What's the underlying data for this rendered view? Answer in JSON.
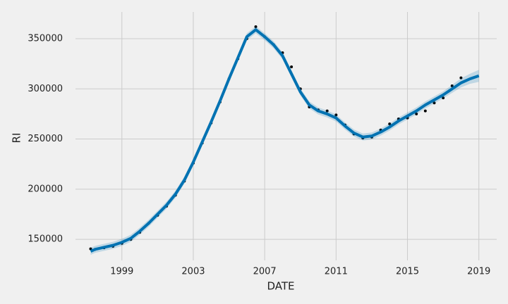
{
  "chart_data": {
    "type": "line",
    "xlabel": "DATE",
    "ylabel": "RI",
    "xlim": [
      1996.4,
      2020.0
    ],
    "xticks": [
      1999,
      2003,
      2007,
      2011,
      2015,
      2019
    ],
    "ylim": [
      129000,
      376700
    ],
    "yticks": [
      150000,
      200000,
      250000,
      300000,
      350000
    ],
    "grid": true,
    "x": [
      1997.25,
      1997.5,
      1998.0,
      1998.5,
      1999.0,
      1999.5,
      2000.0,
      2000.5,
      2001.0,
      2001.5,
      2002.0,
      2002.5,
      2003.0,
      2003.5,
      2004.0,
      2004.5,
      2005.0,
      2005.5,
      2006.0,
      2006.5,
      2007.0,
      2007.5,
      2008.0,
      2008.5,
      2009.0,
      2009.5,
      2010.0,
      2010.5,
      2011.0,
      2011.5,
      2012.0,
      2012.5,
      2013.0,
      2013.5,
      2014.0,
      2014.5,
      2015.0,
      2015.5,
      2016.0,
      2016.5,
      2017.0,
      2017.5,
      2018.0,
      2018.5,
      2019.0
    ],
    "series": [
      {
        "style": "points",
        "color": "#000000",
        "values": [
          140500,
          140000,
          141500,
          143000,
          146000,
          150000,
          157000,
          166000,
          174000,
          183000,
          194000,
          208000,
          226000,
          246000,
          266000,
          287000,
          310000,
          330000,
          350000,
          362000,
          352000,
          344000,
          336000,
          322000,
          300000,
          282000,
          279000,
          278000,
          274000,
          264000,
          255000,
          251000,
          252000,
          259000,
          265000,
          270000,
          271000,
          275000,
          278000,
          286000,
          291000,
          303000,
          311000,
          null,
          null
        ]
      },
      {
        "style": "line",
        "color": "#0072B2",
        "values": [
          138000,
          140000,
          142000,
          144000,
          147000,
          151000,
          158000,
          166000,
          175000,
          184000,
          195000,
          209000,
          227000,
          247000,
          267000,
          288000,
          310000,
          331000,
          352000,
          359000,
          352000,
          344000,
          333000,
          315000,
          297000,
          284000,
          278000,
          275000,
          271000,
          263000,
          256000,
          252000,
          253000,
          257000,
          262000,
          268000,
          273000,
          278000,
          284000,
          289000,
          294000,
          300000,
          306000,
          310000,
          313000
        ],
        "lower": [
          134500,
          136500,
          138500,
          140500,
          143500,
          147500,
          154500,
          162500,
          171500,
          180500,
          191500,
          205500,
          223500,
          243500,
          263500,
          284500,
          306500,
          327500,
          348500,
          355500,
          348500,
          340500,
          329500,
          311500,
          293500,
          280500,
          274500,
          271500,
          267500,
          259500,
          252500,
          248500,
          249500,
          253500,
          258500,
          264500,
          269500,
          274500,
          280500,
          285500,
          290500,
          296000,
          301500,
          305000,
          307000
        ],
        "upper": [
          141500,
          143500,
          145500,
          147500,
          150500,
          154500,
          161500,
          169500,
          178500,
          187500,
          198500,
          212500,
          230500,
          250500,
          270500,
          291500,
          313500,
          334500,
          355500,
          362500,
          355500,
          347500,
          336500,
          318500,
          300500,
          287500,
          281500,
          278500,
          274500,
          266500,
          259500,
          255500,
          256500,
          260500,
          265500,
          271500,
          276500,
          281500,
          287500,
          292500,
          297500,
          304000,
          310500,
          315000,
          319000
        ]
      }
    ]
  }
}
